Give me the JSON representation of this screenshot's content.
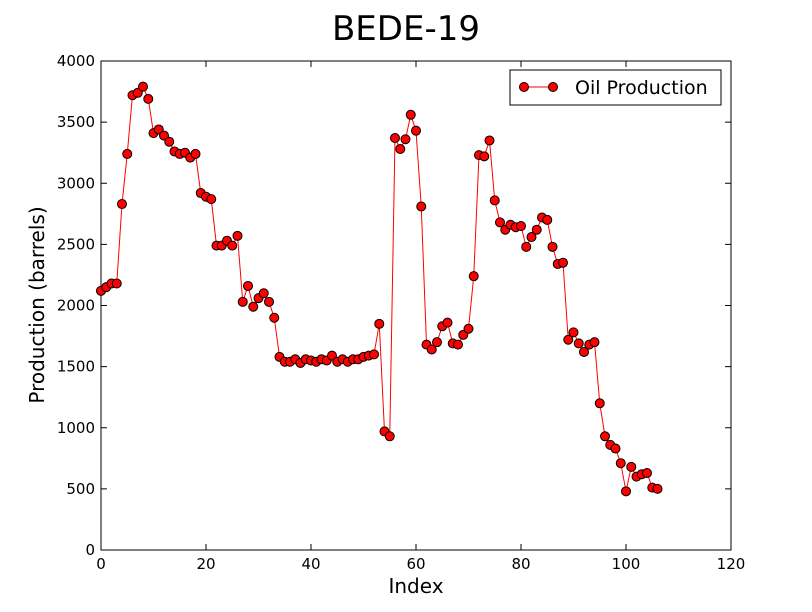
{
  "chart_data": {
    "type": "line",
    "title": "BEDE-19",
    "xlabel": "Index",
    "ylabel": "Production (barrels)",
    "xlim": [
      0,
      120
    ],
    "ylim": [
      0,
      4000
    ],
    "x_ticks": [
      "0",
      "20",
      "40",
      "60",
      "80",
      "100",
      "120"
    ],
    "y_ticks": [
      "0",
      "500",
      "1000",
      "1500",
      "2000",
      "2500",
      "3000",
      "3500",
      "4000"
    ],
    "grid": false,
    "legend": "top-right",
    "series": [
      {
        "name": "Oil Production",
        "color": "#ff0000",
        "marker": "circle",
        "x": [
          0,
          1,
          2,
          3,
          4,
          5,
          6,
          7,
          8,
          9,
          10,
          11,
          12,
          13,
          14,
          15,
          16,
          17,
          18,
          19,
          20,
          21,
          22,
          23,
          24,
          25,
          26,
          27,
          28,
          29,
          30,
          31,
          32,
          33,
          34,
          35,
          36,
          37,
          38,
          39,
          40,
          41,
          42,
          43,
          44,
          45,
          46,
          47,
          48,
          49,
          50,
          51,
          52,
          53,
          54,
          55,
          56,
          57,
          58,
          59,
          60,
          61,
          62,
          63,
          64,
          65,
          66,
          67,
          68,
          69,
          70,
          71,
          72,
          73,
          74,
          75,
          76,
          77,
          78,
          79,
          80,
          81,
          82,
          83,
          84,
          85,
          86,
          87,
          88,
          89,
          90,
          91,
          92,
          93,
          94,
          95,
          96,
          97,
          98,
          99,
          100,
          101,
          102,
          103,
          104,
          105,
          106
        ],
        "values": [
          2120,
          2150,
          2180,
          2180,
          2830,
          3240,
          3720,
          3740,
          3790,
          3690,
          3410,
          3440,
          3390,
          3340,
          3260,
          3240,
          3250,
          3210,
          3240,
          2920,
          2890,
          2870,
          2490,
          2490,
          2530,
          2490,
          2570,
          2030,
          2160,
          1990,
          2060,
          2100,
          2030,
          1900,
          1580,
          1540,
          1540,
          1560,
          1530,
          1560,
          1550,
          1540,
          1560,
          1550,
          1590,
          1540,
          1560,
          1540,
          1560,
          1560,
          1580,
          1590,
          1600,
          1850,
          970,
          930,
          3370,
          3280,
          3360,
          3560,
          3430,
          2810,
          1680,
          1640,
          1700,
          1830,
          1860,
          1690,
          1680,
          1760,
          1810,
          2240,
          3230,
          3220,
          3350,
          2860,
          2680,
          2620,
          2660,
          2640,
          2650,
          2480,
          2560,
          2620,
          2720,
          2700,
          2480,
          2340,
          2350,
          1720,
          1780,
          1690,
          1620,
          1680,
          1700,
          1200,
          930,
          860,
          830,
          710,
          480,
          680,
          600,
          620,
          630,
          510,
          500
        ]
      }
    ]
  }
}
